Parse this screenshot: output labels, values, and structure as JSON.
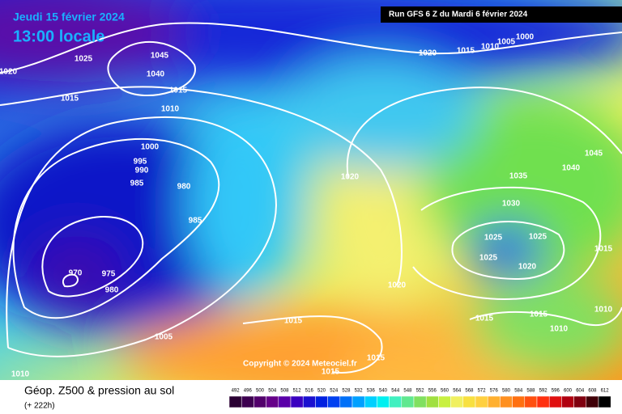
{
  "header": {
    "date": "Jeudi 15 février 2024",
    "time": "13:00 locale",
    "run": "Run GFS 6 Z du Mardi 6 février 2024"
  },
  "isobar_labels": [
    "1000",
    "1005",
    "1010",
    "1015",
    "1020",
    "1020",
    "1025",
    "1045",
    "1040",
    "1015",
    "1015",
    "1010",
    "1000",
    "995",
    "990",
    "985",
    "980",
    "985",
    "970",
    "975",
    "980",
    "1005",
    "1010",
    "1015",
    "1015",
    "1015",
    "1020",
    "1020",
    "1025",
    "1025",
    "1025",
    "1020",
    "1030",
    "1035",
    "1040",
    "1045",
    "1015",
    "1010",
    "1015",
    "1010",
    "1015"
  ],
  "copyright": "Copyright © 2024 Meteociel.fr",
  "footer": {
    "title": "Géop. Z500 & pression au sol",
    "subtitle": "(+ 222h)"
  },
  "legend": {
    "values": [
      492,
      496,
      500,
      504,
      508,
      512,
      516,
      520,
      524,
      528,
      532,
      536,
      540,
      544,
      548,
      552,
      556,
      560,
      564,
      568,
      572,
      576,
      580,
      584,
      588,
      592,
      596,
      600,
      604,
      608,
      612
    ],
    "colors": [
      "#2a0033",
      "#3d0050",
      "#52006b",
      "#660088",
      "#5a00a8",
      "#3a00c0",
      "#1a10d0",
      "#0020e0",
      "#0040f0",
      "#0070f8",
      "#00a0ff",
      "#00d0ff",
      "#00f0f0",
      "#40f0c0",
      "#60e890",
      "#80e060",
      "#a0e040",
      "#c8f040",
      "#f0f060",
      "#f8e040",
      "#ffd040",
      "#ffb030",
      "#ff9020",
      "#ff7010",
      "#ff5010",
      "#ff3010",
      "#e01010",
      "#b00010",
      "#800010",
      "#400008",
      "#000000"
    ]
  }
}
